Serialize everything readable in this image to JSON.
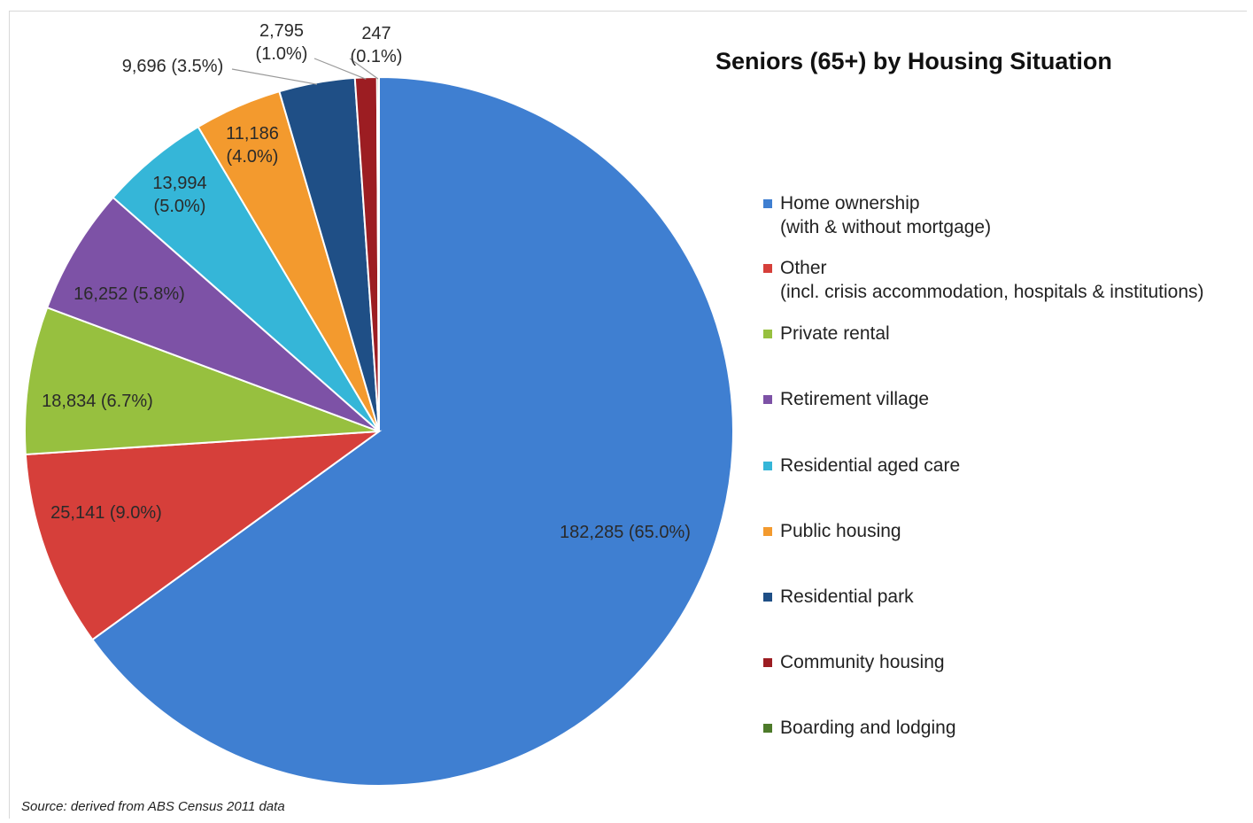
{
  "chart_data": {
    "type": "pie",
    "title": "Seniors (65+) by Housing Situation",
    "slices": [
      {
        "label": "Home ownership",
        "sublabel": "(with & without mortgage)",
        "value": 182285,
        "value_text": "182,285",
        "percent_text": "(65.0%)",
        "color": "#3f7fd1"
      },
      {
        "label": "Other",
        "sublabel": "(incl. crisis accommodation, hospitals & institutions)",
        "value": 25141,
        "value_text": "25,141",
        "percent_text": "(9.0%)",
        "color": "#d63f3a"
      },
      {
        "label": "Private rental",
        "sublabel": "",
        "value": 18834,
        "value_text": "18,834",
        "percent_text": "(6.7%)",
        "color": "#97c03f"
      },
      {
        "label": "Retirement village",
        "sublabel": "",
        "value": 16252,
        "value_text": "16,252",
        "percent_text": "(5.8%)",
        "color": "#7d52a6"
      },
      {
        "label": "Residential aged care",
        "sublabel": "",
        "value": 13994,
        "value_text": "13,994",
        "percent_text": "(5.0%)",
        "color": "#35b6d8"
      },
      {
        "label": "Public housing",
        "sublabel": "",
        "value": 11186,
        "value_text": "11,186",
        "percent_text": "(4.0%)",
        "color": "#f39a2e"
      },
      {
        "label": "Residential park",
        "sublabel": "",
        "value": 9696,
        "value_text": "9,696",
        "percent_text": "(3.5%)",
        "color": "#1f4f86"
      },
      {
        "label": "Community housing",
        "sublabel": "",
        "value": 2795,
        "value_text": "2,795",
        "percent_text": "(1.0%)",
        "color": "#9c1d22"
      },
      {
        "label": "Boarding and lodging",
        "sublabel": "",
        "value": 247,
        "value_text": "247",
        "percent_text": "(0.1%)",
        "color": "#4d7a2a"
      }
    ],
    "legend_position": "right"
  },
  "source_text": "Source: derived from ABS Census 2011 data"
}
